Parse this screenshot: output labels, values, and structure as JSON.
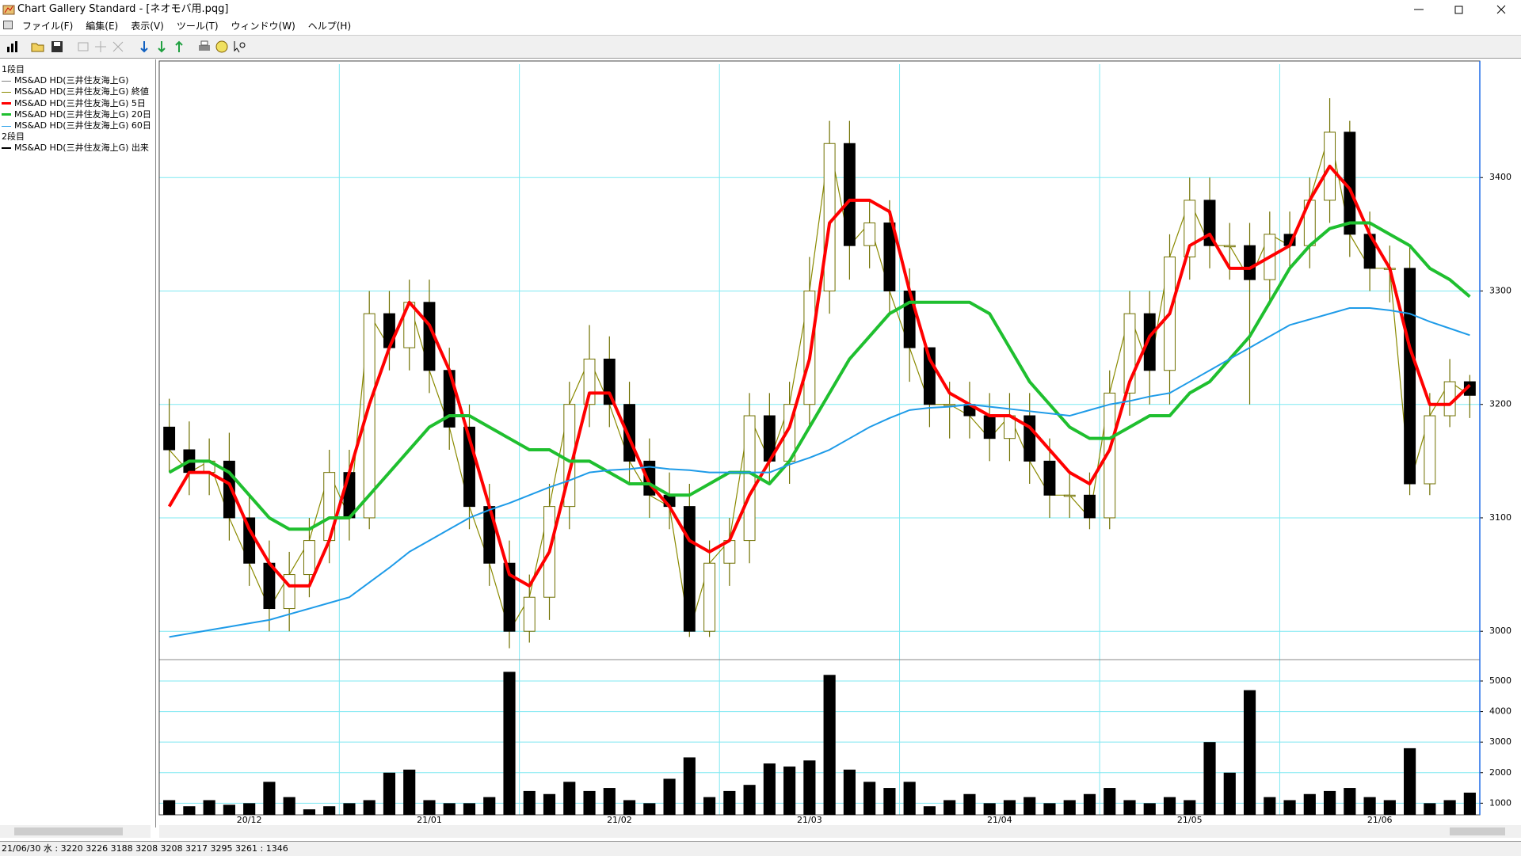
{
  "window": {
    "title": "Chart Gallery Standard - [ネオモバ用.pqg]"
  },
  "menu": [
    "ファイル(F)",
    "編集(E)",
    "表示(V)",
    "ツール(T)",
    "ウィンドウ(W)",
    "ヘルプ(H)"
  ],
  "status_bar": "21/06/30 水 : 3220 3226 3188 3208  3208 3217 3295 3261 : 1346",
  "chart_data": [
    {
      "type": "candlestick",
      "panel_label": "1段目",
      "ohlc": {
        "name": "MS&AD HD(三井住友海上G)",
        "color": "#707000",
        "up_color": "#ffffff",
        "down_color": "#000000",
        "open": [
          3180,
          3160,
          3140,
          3150,
          3100,
          3060,
          3020,
          3050,
          3080,
          3140,
          3100,
          3280,
          3250,
          3290,
          3230,
          3180,
          3110,
          3060,
          3000,
          3030,
          3110,
          3200,
          3240,
          3200,
          3150,
          3120,
          3110,
          3000,
          3060,
          3080,
          3190,
          3150,
          3200,
          3300,
          3430,
          3340,
          3360,
          3300,
          3250,
          3200,
          3200,
          3190,
          3170,
          3190,
          3150,
          3120,
          3120,
          3100,
          3210,
          3280,
          3230,
          3330,
          3380,
          3340,
          3340,
          3310,
          3350,
          3340,
          3380,
          3440,
          3350,
          3320,
          3320,
          3130,
          3190,
          3220
        ],
        "high": [
          3205,
          3185,
          3170,
          3175,
          3120,
          3080,
          3070,
          3100,
          3160,
          3160,
          3300,
          3300,
          3310,
          3310,
          3250,
          3200,
          3130,
          3080,
          3050,
          3130,
          3220,
          3270,
          3260,
          3220,
          3170,
          3140,
          3130,
          3080,
          3100,
          3210,
          3210,
          3220,
          3330,
          3450,
          3450,
          3380,
          3380,
          3320,
          3220,
          3220,
          3220,
          3210,
          3210,
          3210,
          3170,
          3140,
          3140,
          3230,
          3300,
          3300,
          3350,
          3400,
          3400,
          3360,
          3360,
          3370,
          3370,
          3400,
          3470,
          3450,
          3370,
          3340,
          3340,
          3210,
          3240,
          3226
        ],
        "low": [
          3140,
          3120,
          3120,
          3080,
          3040,
          3000,
          3000,
          3030,
          3060,
          3080,
          3090,
          3230,
          3230,
          3210,
          3160,
          3090,
          3040,
          2985,
          2990,
          3010,
          3090,
          3180,
          3180,
          3130,
          3100,
          3090,
          2995,
          2995,
          3040,
          3060,
          3130,
          3130,
          3180,
          3280,
          3310,
          3320,
          3280,
          3220,
          3180,
          3170,
          3170,
          3150,
          3150,
          3130,
          3100,
          3100,
          3090,
          3090,
          3190,
          3200,
          3200,
          3310,
          3320,
          3310,
          3200,
          3290,
          3320,
          3320,
          3360,
          3330,
          3300,
          3290,
          3120,
          3120,
          3180,
          3188
        ],
        "close": [
          3160,
          3140,
          3150,
          3100,
          3060,
          3020,
          3050,
          3080,
          3140,
          3100,
          3280,
          3250,
          3290,
          3230,
          3180,
          3110,
          3060,
          3000,
          3030,
          3110,
          3200,
          3240,
          3200,
          3150,
          3120,
          3110,
          3000,
          3060,
          3080,
          3190,
          3150,
          3200,
          3300,
          3430,
          3340,
          3360,
          3300,
          3250,
          3200,
          3200,
          3190,
          3170,
          3190,
          3150,
          3120,
          3120,
          3100,
          3210,
          3280,
          3230,
          3330,
          3380,
          3340,
          3340,
          3310,
          3350,
          3340,
          3380,
          3440,
          3350,
          3320,
          3320,
          3130,
          3190,
          3220,
          3208
        ]
      },
      "close_line": {
        "name": "MS&AD HD(三井住友海上G) 終値",
        "color": "#8a8a00"
      },
      "series": [
        {
          "name": "MS&AD HD(三井住友海上G) 5日",
          "color": "#ff0000",
          "width": 4,
          "values": [
            3110,
            3140,
            3140,
            3130,
            3090,
            3060,
            3040,
            3040,
            3080,
            3140,
            3200,
            3250,
            3290,
            3270,
            3230,
            3170,
            3110,
            3050,
            3040,
            3070,
            3140,
            3210,
            3210,
            3170,
            3130,
            3110,
            3080,
            3070,
            3080,
            3120,
            3150,
            3180,
            3240,
            3360,
            3380,
            3380,
            3370,
            3300,
            3240,
            3210,
            3200,
            3190,
            3190,
            3180,
            3160,
            3140,
            3130,
            3160,
            3220,
            3260,
            3280,
            3340,
            3350,
            3320,
            3320,
            3330,
            3340,
            3380,
            3410,
            3390,
            3350,
            3320,
            3250,
            3200,
            3200,
            3217
          ]
        },
        {
          "name": "MS&AD HD(三井住友海上G) 20日",
          "color": "#1fbf2f",
          "width": 4,
          "values": [
            3140,
            3150,
            3150,
            3140,
            3120,
            3100,
            3090,
            3090,
            3100,
            3100,
            3120,
            3140,
            3160,
            3180,
            3190,
            3190,
            3180,
            3170,
            3160,
            3160,
            3150,
            3150,
            3140,
            3130,
            3130,
            3120,
            3120,
            3130,
            3140,
            3140,
            3130,
            3150,
            3180,
            3210,
            3240,
            3260,
            3280,
            3290,
            3290,
            3290,
            3290,
            3280,
            3250,
            3220,
            3200,
            3180,
            3170,
            3170,
            3180,
            3190,
            3190,
            3210,
            3220,
            3240,
            3260,
            3290,
            3320,
            3340,
            3355,
            3360,
            3360,
            3350,
            3340,
            3320,
            3310,
            3295
          ]
        },
        {
          "name": "MS&AD HD(三井住友海上G) 60日",
          "color": "#1e9be8",
          "width": 2,
          "values": [
            2995,
            2998,
            3001,
            3004,
            3007,
            3010,
            3015,
            3020,
            3025,
            3030,
            3043,
            3056,
            3070,
            3080,
            3090,
            3100,
            3107,
            3113,
            3120,
            3127,
            3133,
            3140,
            3142,
            3143,
            3145,
            3143,
            3142,
            3140,
            3140,
            3140,
            3140,
            3147,
            3153,
            3160,
            3170,
            3180,
            3188,
            3195,
            3197,
            3198,
            3200,
            3198,
            3196,
            3194,
            3192,
            3190,
            3195,
            3200,
            3203,
            3207,
            3210,
            3220,
            3230,
            3240,
            3250,
            3260,
            3270,
            3275,
            3280,
            3285,
            3285,
            3283,
            3280,
            3273,
            3267,
            3261
          ]
        }
      ],
      "ylim": [
        2975,
        3500
      ],
      "yticks": [
        3000,
        3100,
        3200,
        3300,
        3400
      ],
      "grid": true,
      "grid_color": "#7fe8f2"
    },
    {
      "type": "bar",
      "panel_label": "2段目",
      "categories": [
        "20/12",
        null,
        null,
        null,
        null,
        null,
        null,
        null,
        null,
        "21/01",
        null,
        null,
        null,
        null,
        null,
        null,
        null,
        null,
        "21/02",
        null,
        null,
        null,
        null,
        null,
        null,
        null,
        null,
        null,
        "21/03",
        null,
        null,
        null,
        null,
        null,
        null,
        null,
        null,
        "21/04",
        null,
        null,
        null,
        null,
        null,
        null,
        null,
        null,
        null,
        "21/05",
        null,
        null,
        null,
        null,
        null,
        null,
        null,
        null,
        "21/06",
        null,
        null,
        null,
        null,
        null,
        null,
        null,
        null,
        null
      ],
      "series": [
        {
          "name": "MS&AD HD(三井住友海上G) 出来",
          "color": "#000000",
          "values": [
            1100,
            900,
            1100,
            950,
            1000,
            1700,
            1200,
            800,
            900,
            1000,
            1100,
            2000,
            2100,
            1100,
            1000,
            1000,
            1200,
            5300,
            1400,
            1300,
            1700,
            1400,
            1500,
            1100,
            1000,
            1800,
            2500,
            1200,
            1400,
            1600,
            2300,
            2200,
            2400,
            5200,
            2100,
            1700,
            1500,
            1700,
            900,
            1100,
            1300,
            1000,
            1100,
            1200,
            1000,
            1100,
            1300,
            1500,
            1100,
            1000,
            1200,
            1100,
            3000,
            2000,
            4700,
            1200,
            1100,
            1300,
            1400,
            1500,
            1200,
            1100,
            2800,
            1000,
            1100,
            1346
          ]
        }
      ],
      "ylim": [
        620,
        5700
      ],
      "yticks": [
        1000,
        2000,
        3000,
        4000,
        5000
      ],
      "grid": true,
      "grid_color": "#7fe8f2"
    }
  ]
}
